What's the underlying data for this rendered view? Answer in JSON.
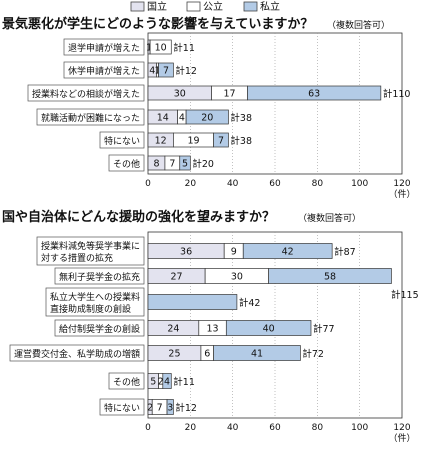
{
  "legend": {
    "items": [
      {
        "label": "国立",
        "color": "#e3e3ef"
      },
      {
        "label": "公立",
        "color": "#ffffff"
      },
      {
        "label": "私立",
        "color": "#b3cbe6"
      }
    ]
  },
  "chart_data": [
    {
      "type": "bar",
      "orientation": "horizontal",
      "stacked": true,
      "title": "景気悪化が学生にどのような影響を与えていますか？",
      "subtitle": "（複数回答可）",
      "unit": "（件）",
      "categories": [
        "退学申請が増えた",
        "休学申請が増えた",
        "授業料などの相談が増えた",
        "就職活動が困難になった",
        "特にない",
        "その他"
      ],
      "series": [
        {
          "name": "国立",
          "values": [
            1,
            4,
            30,
            14,
            12,
            8
          ]
        },
        {
          "name": "公立",
          "values": [
            10,
            1,
            17,
            4,
            19,
            7
          ]
        },
        {
          "name": "私立",
          "values": [
            0,
            7,
            63,
            20,
            7,
            5
          ]
        }
      ],
      "segment_labels": [
        [
          "1",
          "10",
          ""
        ],
        [
          "4",
          "1",
          "7"
        ],
        [
          "30",
          "17",
          "63"
        ],
        [
          "14",
          "4",
          "20"
        ],
        [
          "12",
          "19",
          "7"
        ],
        [
          "8",
          "7",
          "5"
        ]
      ],
      "totals": [
        "計11",
        "計12",
        "計110",
        "計38",
        "計38",
        "計20"
      ],
      "xlim": [
        0,
        120
      ],
      "xticks": [
        "0",
        "20",
        "40",
        "60",
        "80",
        "100",
        "120"
      ]
    },
    {
      "type": "bar",
      "orientation": "horizontal",
      "stacked": true,
      "title": "国や自治体にどんな援助の強化を望みますか？",
      "subtitle": "（複数回答可）",
      "unit": "（件）",
      "categories": [
        [
          "授業料減免等奨学事業に",
          "対する措置の拡充"
        ],
        [
          "無利子奨学金の拡充"
        ],
        [
          "私立大学生への授業料",
          "直接助成制度の創設"
        ],
        [
          "給付制奨学金の創設"
        ],
        [
          "運営費交付金、私学助成の増額"
        ],
        [
          "その他"
        ],
        [
          "特にない"
        ]
      ],
      "series": [
        {
          "name": "国立",
          "values": [
            36,
            27,
            0,
            24,
            25,
            5,
            2
          ]
        },
        {
          "name": "公立",
          "values": [
            9,
            30,
            0,
            13,
            6,
            2,
            7
          ]
        },
        {
          "name": "私立",
          "values": [
            42,
            58,
            42,
            40,
            41,
            4,
            3
          ]
        }
      ],
      "segment_labels": [
        [
          "36",
          "9",
          "42"
        ],
        [
          "27",
          "30",
          "58"
        ],
        [
          "",
          "",
          ""
        ],
        [
          "24",
          "13",
          "40"
        ],
        [
          "25",
          "6",
          "41"
        ],
        [
          "5",
          "2",
          "4"
        ],
        [
          "2",
          "7",
          "3"
        ]
      ],
      "totals": [
        "計87",
        "",
        "計42",
        "計77",
        "計72",
        "計11",
        "計12"
      ],
      "extra_total": "計115",
      "xlim": [
        0,
        120
      ],
      "xticks": [
        "0",
        "20",
        "40",
        "60",
        "80",
        "100",
        "120"
      ]
    }
  ]
}
